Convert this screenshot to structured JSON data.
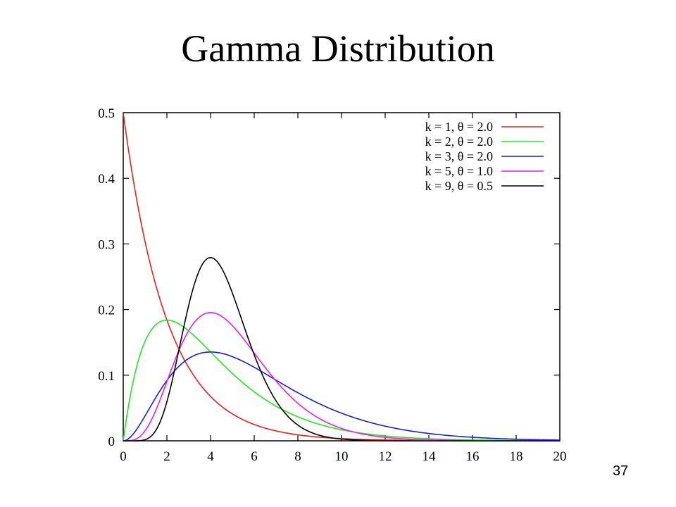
{
  "slide": {
    "title": "Gamma Distribution",
    "page_number": "37"
  },
  "chart_data": {
    "type": "line",
    "title": "",
    "xlabel": "",
    "ylabel": "",
    "xlim": [
      0,
      20
    ],
    "ylim": [
      0,
      0.5
    ],
    "x_ticks": [
      "0",
      "2",
      "4",
      "6",
      "8",
      "10",
      "12",
      "14",
      "16",
      "18",
      "20"
    ],
    "y_ticks": [
      "0",
      "0.1",
      "0.2",
      "0.3",
      "0.4",
      "0.5"
    ],
    "grid": false,
    "legend_position": "top-right",
    "series": [
      {
        "name": "k = 1, θ = 2.0",
        "k": 1,
        "theta": 2.0,
        "color": "#e8211e",
        "x": [
          0,
          1,
          2,
          3,
          4,
          6,
          8,
          10,
          14,
          20
        ],
        "y": [
          0.5,
          0.303,
          0.184,
          0.112,
          0.068,
          0.025,
          0.009,
          0.003,
          0.0005,
          0.0
        ]
      },
      {
        "name": "k = 2, θ = 2.0",
        "k": 2,
        "theta": 2.0,
        "color": "#22e822",
        "x": [
          0,
          1,
          2,
          3,
          4,
          6,
          8,
          10,
          14,
          20
        ],
        "y": [
          0.0,
          0.152,
          0.184,
          0.167,
          0.135,
          0.075,
          0.037,
          0.017,
          0.003,
          0.0
        ]
      },
      {
        "name": "k = 3, θ = 2.0",
        "k": 3,
        "theta": 2.0,
        "color": "#1c1ce0",
        "x": [
          0,
          1,
          2,
          3,
          4,
          6,
          8,
          10,
          14,
          20
        ],
        "y": [
          0.0,
          0.038,
          0.092,
          0.126,
          0.135,
          0.112,
          0.073,
          0.042,
          0.011,
          0.001
        ]
      },
      {
        "name": "k = 5, θ = 1.0",
        "k": 5,
        "theta": 1.0,
        "color": "#ee1cee",
        "x": [
          0,
          1,
          2,
          3,
          4,
          6,
          8,
          10,
          14,
          20
        ],
        "y": [
          0.0,
          0.015,
          0.09,
          0.168,
          0.195,
          0.134,
          0.057,
          0.019,
          0.001,
          0.0
        ]
      },
      {
        "name": "k = 9, θ = 0.5",
        "k": 9,
        "theta": 0.5,
        "color": "#000000",
        "x": [
          0,
          1,
          2,
          3,
          4,
          5,
          6,
          8,
          10,
          20
        ],
        "y": [
          0.0,
          0.0,
          0.029,
          0.161,
          0.279,
          0.217,
          0.11,
          0.014,
          0.001,
          0.0
        ]
      }
    ]
  }
}
